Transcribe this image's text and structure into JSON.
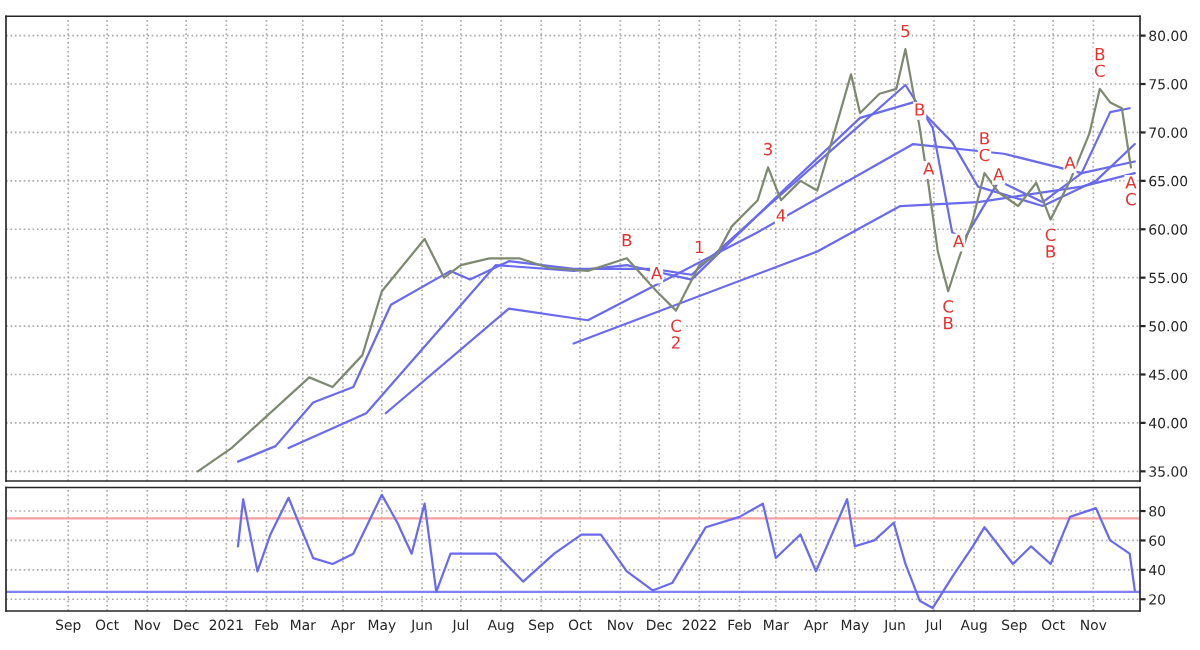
{
  "chart_data": [
    {
      "type": "line",
      "xlim": [
        "2020-07-15",
        "2022-12-07"
      ],
      "ylim": [
        34,
        82
      ],
      "xticks": [
        {
          "value": "2020-09-01",
          "label": null
        },
        {
          "value": "2020-10-01",
          "label": null
        },
        {
          "value": "2020-11-01",
          "label": null
        },
        {
          "value": "2020-12-01",
          "label": null
        },
        {
          "value": "2021-01-01",
          "label": null
        },
        {
          "value": "2021-02-01",
          "label": null
        },
        {
          "value": "2021-03-01",
          "label": null
        },
        {
          "value": "2021-04-01",
          "label": null
        },
        {
          "value": "2021-05-01",
          "label": null
        },
        {
          "value": "2021-06-01",
          "label": null
        },
        {
          "value": "2021-07-01",
          "label": null
        },
        {
          "value": "2021-08-01",
          "label": null
        },
        {
          "value": "2021-09-01",
          "label": null
        },
        {
          "value": "2021-10-01",
          "label": null
        },
        {
          "value": "2021-11-01",
          "label": null
        },
        {
          "value": "2021-12-01",
          "label": null
        },
        {
          "value": "2022-01-01",
          "label": null
        },
        {
          "value": "2022-02-01",
          "label": null
        },
        {
          "value": "2022-03-01",
          "label": null
        },
        {
          "value": "2022-04-01",
          "label": null
        },
        {
          "value": "2022-05-01",
          "label": null
        },
        {
          "value": "2022-06-01",
          "label": null
        },
        {
          "value": "2022-07-01",
          "label": null
        },
        {
          "value": "2022-08-01",
          "label": null
        },
        {
          "value": "2022-09-01",
          "label": null
        },
        {
          "value": "2022-10-01",
          "label": null
        },
        {
          "value": "2022-11-01",
          "label": null
        }
      ],
      "yticks": [
        {
          "value": 35,
          "label": "35.00"
        },
        {
          "value": 40,
          "label": "40.00"
        },
        {
          "value": 45,
          "label": "45.00"
        },
        {
          "value": 50,
          "label": "50.00"
        },
        {
          "value": 55,
          "label": "55.00"
        },
        {
          "value": 60,
          "label": "60.00"
        },
        {
          "value": 65,
          "label": "65.00"
        },
        {
          "value": 70,
          "label": "70.00"
        },
        {
          "value": 75,
          "label": "75.00"
        },
        {
          "value": 80,
          "label": "80.00"
        }
      ],
      "tick_labels": "y",
      "grid": true,
      "legend": false,
      "marker": "none",
      "line_style": "solid",
      "series": [
        {
          "color": "#7d8a70",
          "x": [
            "2020-12-10",
            "2021-01-05",
            "2021-03-06",
            "2021-03-24",
            "2021-04-16",
            "2021-05-01",
            "2021-06-03",
            "2021-06-18",
            "2021-07-01",
            "2021-07-23",
            "2021-08-15",
            "2021-09-07",
            "2021-10-07",
            "2021-11-06",
            "2021-11-29",
            "2021-12-14",
            "2022-01-01",
            "2022-01-14",
            "2022-01-26",
            "2022-02-15",
            "2022-02-23",
            "2022-03-05",
            "2022-03-20",
            "2022-04-02",
            "2022-04-13",
            "2022-04-28",
            "2022-05-05",
            "2022-05-20",
            "2022-06-02",
            "2022-06-09",
            "2022-06-20",
            "2022-06-27",
            "2022-07-04",
            "2022-07-12",
            "2022-07-20",
            "2022-07-31",
            "2022-08-09",
            "2022-08-20",
            "2022-09-04",
            "2022-09-18",
            "2022-09-29",
            "2022-10-14",
            "2022-10-29",
            "2022-11-06",
            "2022-11-14",
            "2022-11-23",
            "2022-11-30"
          ],
          "values": [
            35,
            37.4,
            44.7,
            43.7,
            47,
            53.6,
            59,
            55,
            56.3,
            57,
            57,
            56,
            55.7,
            57,
            53.6,
            51.6,
            56.3,
            57.3,
            60.3,
            63,
            66.4,
            63,
            65,
            64,
            69,
            76,
            72,
            74,
            74.5,
            78.6,
            70.5,
            64.4,
            57.7,
            53.6,
            56.9,
            61,
            65.8,
            63.8,
            62.4,
            64.8,
            61,
            65,
            69.9,
            74.5,
            73.1,
            72.5,
            66.4
          ]
        },
        {
          "color": "#6a6af0",
          "x": [
            "2021-01-10",
            "2021-02-08",
            "2021-03-09",
            "2021-04-09",
            "2021-05-08",
            "2021-06-23",
            "2021-07-08",
            "2021-08-07",
            "2021-09-26",
            "2021-11-26",
            "2021-12-26",
            "2022-02-23",
            "2022-04-20",
            "2022-06-09",
            "2022-06-30",
            "2022-07-15",
            "2022-07-24",
            "2022-08-20",
            "2022-09-23",
            "2022-10-23",
            "2022-11-14",
            "2022-11-29"
          ],
          "values": [
            36,
            37.6,
            42.1,
            43.7,
            52.2,
            55.7,
            54.8,
            56.7,
            55.9,
            55.9,
            55.3,
            62.4,
            69,
            74.9,
            70.5,
            59.7,
            58.9,
            65,
            62.8,
            65.8,
            72.1,
            72.5
          ]
        },
        {
          "color": "#6a6af0",
          "x": [
            "2021-02-18",
            "2021-04-19",
            "2021-07-28",
            "2021-09-26",
            "2021-11-06",
            "2021-12-26",
            "2022-03-05",
            "2022-05-05",
            "2022-06-15",
            "2022-07-15",
            "2022-08-04",
            "2022-09-23",
            "2022-11-03",
            "2022-12-03"
          ],
          "values": [
            37.4,
            41,
            56.3,
            55.7,
            56.3,
            54.8,
            63.8,
            71.5,
            73.1,
            69,
            64.4,
            62.4,
            65,
            68.8
          ]
        },
        {
          "color": "#6a6af0",
          "x": [
            "2021-05-04",
            "2021-08-07",
            "2021-10-07",
            "2022-02-15",
            "2022-06-15",
            "2022-08-24",
            "2022-10-23",
            "2022-12-03"
          ],
          "values": [
            41,
            51.8,
            50.6,
            59.7,
            68.8,
            67.8,
            65.8,
            67
          ]
        },
        {
          "color": "#6a6af0",
          "x": [
            "2021-09-26",
            "2022-04-02",
            "2022-06-05",
            "2022-08-04",
            "2022-10-23",
            "2022-12-03"
          ],
          "values": [
            48.2,
            57.7,
            62.4,
            62.8,
            64.4,
            65.8
          ]
        }
      ],
      "annotations": [
        {
          "text": "A",
          "x": "2021-11-29",
          "y": 53.6
        },
        {
          "text": "B",
          "x": "2021-11-06",
          "y": 57
        },
        {
          "text": "C",
          "x": "2021-12-14",
          "y": 51.6
        },
        {
          "text": "1",
          "x": "2022-01-01",
          "y": 56.3
        },
        {
          "text": "2",
          "x": "2021-12-14",
          "y": 51.6
        },
        {
          "text": "3",
          "x": "2022-02-23",
          "y": 66.4
        },
        {
          "text": "4",
          "x": "2022-03-05",
          "y": 63
        },
        {
          "text": "5",
          "x": "2022-06-09",
          "y": 78.6
        },
        {
          "text": "A",
          "x": "2022-06-27",
          "y": 64.4
        },
        {
          "text": "B",
          "x": "2022-06-20",
          "y": 70.5
        },
        {
          "text": "A",
          "x": "2022-07-20",
          "y": 56.9
        },
        {
          "text": "C",
          "x": "2022-07-12",
          "y": 53.6
        },
        {
          "text": "B",
          "x": "2022-07-12",
          "y": 53.6
        },
        {
          "text": "C",
          "x": "2022-08-09",
          "y": 65.8
        },
        {
          "text": "A",
          "x": "2022-08-20",
          "y": 63.8
        },
        {
          "text": "B",
          "x": "2022-08-09",
          "y": 65.8
        },
        {
          "text": "C",
          "x": "2022-09-29",
          "y": 61
        },
        {
          "text": "A",
          "x": "2022-10-14",
          "y": 65
        },
        {
          "text": "B",
          "x": "2022-09-29",
          "y": 61
        },
        {
          "text": "C",
          "x": "2022-11-06",
          "y": 74.5
        },
        {
          "text": "A",
          "x": "2022-11-30",
          "y": 66.4
        },
        {
          "text": "B",
          "x": "2022-11-06",
          "y": 74.5
        },
        {
          "text": "C",
          "x": "2022-11-30",
          "y": 66.4
        }
      ]
    },
    {
      "type": "line",
      "xlim": [
        "2020-07-15",
        "2022-12-07"
      ],
      "ylim": [
        12,
        96
      ],
      "xticks": [
        {
          "value": "2020-09-01",
          "label": "Sep"
        },
        {
          "value": "2020-10-01",
          "label": "Oct"
        },
        {
          "value": "2020-11-01",
          "label": "Nov"
        },
        {
          "value": "2020-12-01",
          "label": "Dec"
        },
        {
          "value": "2021-01-01",
          "label": "2021"
        },
        {
          "value": "2021-02-01",
          "label": "Feb"
        },
        {
          "value": "2021-03-01",
          "label": "Mar"
        },
        {
          "value": "2021-04-01",
          "label": "Apr"
        },
        {
          "value": "2021-05-01",
          "label": "May"
        },
        {
          "value": "2021-06-01",
          "label": "Jun"
        },
        {
          "value": "2021-07-01",
          "label": "Jul"
        },
        {
          "value": "2021-08-01",
          "label": "Aug"
        },
        {
          "value": "2021-09-01",
          "label": "Sep"
        },
        {
          "value": "2021-10-01",
          "label": "Oct"
        },
        {
          "value": "2021-11-01",
          "label": "Nov"
        },
        {
          "value": "2021-12-01",
          "label": "Dec"
        },
        {
          "value": "2022-01-01",
          "label": "2022"
        },
        {
          "value": "2022-02-01",
          "label": "Feb"
        },
        {
          "value": "2022-03-01",
          "label": "Mar"
        },
        {
          "value": "2022-04-01",
          "label": "Apr"
        },
        {
          "value": "2022-05-01",
          "label": "May"
        },
        {
          "value": "2022-06-01",
          "label": "Jun"
        },
        {
          "value": "2022-07-01",
          "label": "Jul"
        },
        {
          "value": "2022-08-01",
          "label": "Aug"
        },
        {
          "value": "2022-09-01",
          "label": "Sep"
        },
        {
          "value": "2022-10-01",
          "label": "Oct"
        },
        {
          "value": "2022-11-01",
          "label": "Nov"
        }
      ],
      "yticks": [
        20,
        40,
        60,
        80
      ],
      "grid": true,
      "legend": false,
      "marker": "none",
      "line_style": "solid",
      "ref_lines": [
        {
          "axis": "y",
          "value": 75,
          "color": "#f4a0a0"
        },
        {
          "axis": "y",
          "value": 25,
          "color": "#8080f0"
        }
      ],
      "series": [
        {
          "color": "#6a6af0",
          "x": [
            "2021-01-10",
            "2021-01-14",
            "2021-01-25",
            "2021-02-04",
            "2021-02-18",
            "2021-03-09",
            "2021-03-24",
            "2021-04-09",
            "2021-05-01",
            "2021-05-13",
            "2021-05-24",
            "2021-06-03",
            "2021-06-12",
            "2021-06-23",
            "2021-07-28",
            "2021-08-18",
            "2021-09-11",
            "2021-10-02",
            "2021-10-17",
            "2021-11-06",
            "2021-11-26",
            "2021-12-11",
            "2022-01-06",
            "2022-02-01",
            "2022-02-19",
            "2022-03-01",
            "2022-03-20",
            "2022-04-01",
            "2022-04-25",
            "2022-05-01",
            "2022-05-16",
            "2022-05-31",
            "2022-06-09",
            "2022-06-20",
            "2022-06-30",
            "2022-07-15",
            "2022-07-31",
            "2022-08-09",
            "2022-08-31",
            "2022-09-14",
            "2022-09-29",
            "2022-10-14",
            "2022-11-03",
            "2022-11-14",
            "2022-11-29",
            "2022-12-03"
          ],
          "values": [
            56,
            88,
            39,
            64,
            89,
            48,
            44,
            51,
            91,
            72,
            51,
            85,
            25,
            51,
            51,
            32,
            51,
            64,
            64,
            39,
            26,
            31,
            69,
            76,
            85,
            48,
            64,
            39,
            88,
            56,
            60,
            72,
            44,
            19,
            14,
            35,
            56,
            69,
            44,
            56,
            44,
            76,
            82,
            60,
            51,
            26
          ]
        }
      ]
    }
  ]
}
